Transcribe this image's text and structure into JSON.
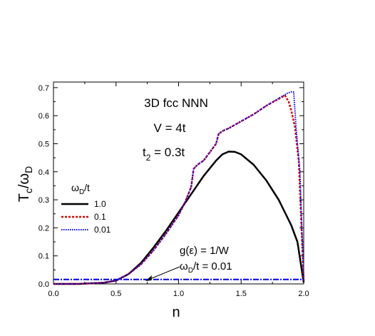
{
  "chart_data": {
    "type": "line",
    "xlabel": "n",
    "ylabel": "T_c/ω_D",
    "xlim": [
      0.0,
      2.0
    ],
    "ylim": [
      0.0,
      0.72
    ],
    "xticks": [
      "0.0",
      "0.5",
      "1.0",
      "1.5",
      "2.0"
    ],
    "xtick_values": [
      0.0,
      0.5,
      1.0,
      1.5,
      2.0
    ],
    "yticks": [
      "0.0",
      "0.1",
      "0.2",
      "0.3",
      "0.4",
      "0.5",
      "0.6",
      "0.7"
    ],
    "ytick_values": [
      0.0,
      0.1,
      0.2,
      0.3,
      0.4,
      0.5,
      0.6,
      0.7
    ],
    "grid": false,
    "annotations": {
      "title_line1": "3D fcc  NNN",
      "title_line2": "V = 4t",
      "title_line3_main": "t",
      "title_line3_sub": "2",
      "title_line3_rest": " = 0.3t",
      "flat_label_line1": "g(ε) = 1/W",
      "flat_label_line2_main": "ω",
      "flat_label_line2_sub": "D",
      "flat_label_line2_rest": "/t = 0.01"
    },
    "legend": {
      "title_main": "ω",
      "title_sub": "D",
      "title_rest": "/t",
      "placement": "left"
    },
    "series": [
      {
        "name": "1.0",
        "color": "#000000",
        "style": "solid",
        "x": [
          0.0,
          0.2,
          0.4,
          0.5,
          0.6,
          0.7,
          0.8,
          0.9,
          1.0,
          1.1,
          1.2,
          1.3,
          1.35,
          1.4,
          1.45,
          1.5,
          1.6,
          1.7,
          1.8,
          1.9,
          1.95,
          2.0
        ],
        "values": [
          0.0,
          0.0,
          0.004,
          0.012,
          0.035,
          0.075,
          0.13,
          0.19,
          0.255,
          0.32,
          0.385,
          0.44,
          0.462,
          0.472,
          0.471,
          0.462,
          0.425,
          0.37,
          0.3,
          0.21,
          0.15,
          0.005
        ]
      },
      {
        "name": "0.1",
        "color": "#e00000",
        "style": "dashed",
        "x": [
          0.0,
          0.2,
          0.4,
          0.5,
          0.6,
          0.7,
          0.8,
          0.9,
          1.0,
          1.05,
          1.1,
          1.12,
          1.15,
          1.2,
          1.25,
          1.3,
          1.32,
          1.35,
          1.4,
          1.5,
          1.6,
          1.7,
          1.8,
          1.85,
          1.88,
          1.9,
          1.93,
          1.96,
          2.0
        ],
        "values": [
          0.0,
          0.0,
          0.004,
          0.012,
          0.035,
          0.07,
          0.12,
          0.18,
          0.245,
          0.29,
          0.345,
          0.41,
          0.425,
          0.44,
          0.47,
          0.5,
          0.535,
          0.545,
          0.555,
          0.58,
          0.605,
          0.635,
          0.66,
          0.672,
          0.65,
          0.62,
          0.56,
          0.44,
          0.01
        ]
      },
      {
        "name": "0.01",
        "color": "#0000ee",
        "style": "dotted",
        "x": [
          0.0,
          0.2,
          0.4,
          0.5,
          0.6,
          0.7,
          0.8,
          0.9,
          1.0,
          1.05,
          1.1,
          1.12,
          1.15,
          1.2,
          1.25,
          1.3,
          1.32,
          1.35,
          1.4,
          1.5,
          1.6,
          1.7,
          1.8,
          1.87,
          1.9,
          1.92,
          1.94,
          1.97,
          2.0
        ],
        "values": [
          0.0,
          0.0,
          0.004,
          0.012,
          0.035,
          0.07,
          0.12,
          0.18,
          0.245,
          0.29,
          0.345,
          0.41,
          0.425,
          0.44,
          0.47,
          0.5,
          0.535,
          0.545,
          0.555,
          0.58,
          0.605,
          0.635,
          0.662,
          0.68,
          0.685,
          0.684,
          0.55,
          0.4,
          0.01
        ]
      },
      {
        "name": "",
        "color": "#0000ee",
        "style": "dashdot",
        "x": [
          0.0,
          2.0
        ],
        "values": [
          0.016,
          0.016
        ]
      }
    ]
  }
}
